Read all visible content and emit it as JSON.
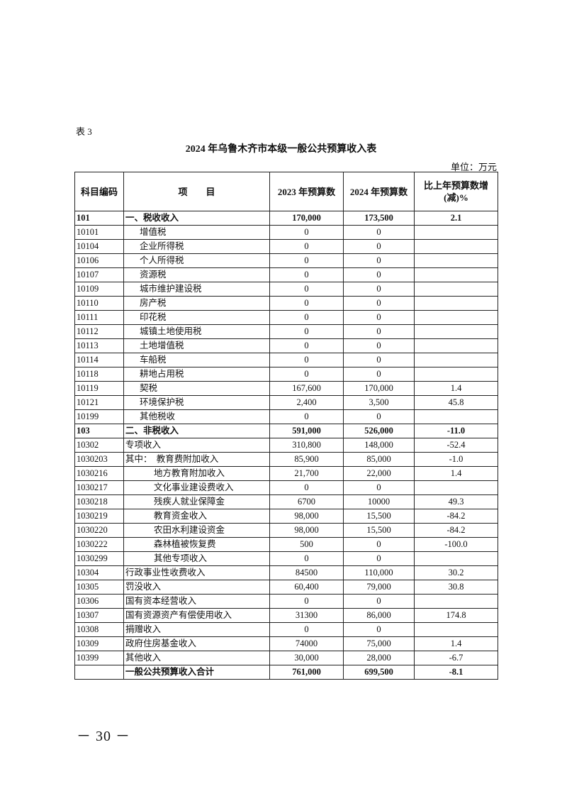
{
  "table_label": "表 3",
  "title": "2024 年乌鲁木齐市本级一般公共预算收入表",
  "unit": "单位：万元",
  "headers": {
    "code": "科目编码",
    "item": "项　　目",
    "y2023": "2023 年预算数",
    "y2024": "2024 年预算数",
    "change": "比上年预算数增(减)%"
  },
  "rows": [
    {
      "code": "101",
      "item": "一、税收收入",
      "y2023": "170,000",
      "y2024": "173,500",
      "change": "2.1",
      "level": "bold"
    },
    {
      "code": "10101",
      "item": "增值税",
      "y2023": "0",
      "y2024": "0",
      "change": "",
      "level": "ind1"
    },
    {
      "code": "10104",
      "item": "企业所得税",
      "y2023": "0",
      "y2024": "0",
      "change": "",
      "level": "ind1"
    },
    {
      "code": "10106",
      "item": "个人所得税",
      "y2023": "0",
      "y2024": "0",
      "change": "",
      "level": "ind1"
    },
    {
      "code": "10107",
      "item": "资源税",
      "y2023": "0",
      "y2024": "0",
      "change": "",
      "level": "ind1"
    },
    {
      "code": "10109",
      "item": "城市维护建设税",
      "y2023": "0",
      "y2024": "0",
      "change": "",
      "level": "ind1"
    },
    {
      "code": "10110",
      "item": "房产税",
      "y2023": "0",
      "y2024": "0",
      "change": "",
      "level": "ind1"
    },
    {
      "code": "10111",
      "item": "印花税",
      "y2023": "0",
      "y2024": "0",
      "change": "",
      "level": "ind1"
    },
    {
      "code": "10112",
      "item": "城镇土地使用税",
      "y2023": "0",
      "y2024": "0",
      "change": "",
      "level": "ind1"
    },
    {
      "code": "10113",
      "item": "土地增值税",
      "y2023": "0",
      "y2024": "0",
      "change": "",
      "level": "ind1"
    },
    {
      "code": "10114",
      "item": "车船税",
      "y2023": "0",
      "y2024": "0",
      "change": "",
      "level": "ind1"
    },
    {
      "code": "10118",
      "item": "耕地占用税",
      "y2023": "0",
      "y2024": "0",
      "change": "",
      "level": "ind1"
    },
    {
      "code": "10119",
      "item": "契税",
      "y2023": "167,600",
      "y2024": "170,000",
      "change": "1.4",
      "level": "ind1"
    },
    {
      "code": "10121",
      "item": "环境保护税",
      "y2023": "2,400",
      "y2024": "3,500",
      "change": "45.8",
      "level": "ind1"
    },
    {
      "code": "10199",
      "item": "其他税收",
      "y2023": "0",
      "y2024": "0",
      "change": "",
      "level": "ind1"
    },
    {
      "code": "103",
      "item": "二、非税收入",
      "y2023": "591,000",
      "y2024": "526,000",
      "change": "-11.0",
      "level": "bold"
    },
    {
      "code": "10302",
      "item": "专项收入",
      "y2023": "310,800",
      "y2024": "148,000",
      "change": "-52.4",
      "level": "ind0"
    },
    {
      "code": "1030203",
      "item": "其中：　教育费附加收入",
      "y2023": "85,900",
      "y2024": "85,000",
      "change": "-1.0",
      "level": "ind0"
    },
    {
      "code": "1030216",
      "item": "地方教育附加收入",
      "y2023": "21,700",
      "y2024": "22,000",
      "change": "1.4",
      "level": "ind2"
    },
    {
      "code": "1030217",
      "item": "文化事业建设费收入",
      "y2023": "0",
      "y2024": "0",
      "change": "",
      "level": "ind2"
    },
    {
      "code": "1030218",
      "item": "残疾人就业保障金",
      "y2023": "6700",
      "y2024": "10000",
      "change": "49.3",
      "level": "ind2"
    },
    {
      "code": "1030219",
      "item": "教育资金收入",
      "y2023": "98,000",
      "y2024": "15,500",
      "change": "-84.2",
      "level": "ind2"
    },
    {
      "code": "1030220",
      "item": "农田水利建设资金",
      "y2023": "98,000",
      "y2024": "15,500",
      "change": "-84.2",
      "level": "ind2"
    },
    {
      "code": "1030222",
      "item": "森林植被恢复费",
      "y2023": "500",
      "y2024": "0",
      "change": "-100.0",
      "level": "ind2"
    },
    {
      "code": "1030299",
      "item": "其他专项收入",
      "y2023": "0",
      "y2024": "0",
      "change": "",
      "level": "ind2"
    },
    {
      "code": "10304",
      "item": "行政事业性收费收入",
      "y2023": "84500",
      "y2024": "110,000",
      "change": "30.2",
      "level": "ind0"
    },
    {
      "code": "10305",
      "item": "罚没收入",
      "y2023": "60,400",
      "y2024": "79,000",
      "change": "30.8",
      "level": "ind0"
    },
    {
      "code": "10306",
      "item": "国有资本经营收入",
      "y2023": "0",
      "y2024": "0",
      "change": "",
      "level": "ind0"
    },
    {
      "code": "10307",
      "item": "国有资源资产有偿使用收入",
      "y2023": "31300",
      "y2024": "86,000",
      "change": "174.8",
      "level": "ind0"
    },
    {
      "code": "10308",
      "item": "捐赠收入",
      "y2023": "0",
      "y2024": "0",
      "change": "",
      "level": "ind0"
    },
    {
      "code": "10309",
      "item": "政府住房基金收入",
      "y2023": "74000",
      "y2024": "75,000",
      "change": "1.4",
      "level": "ind0"
    },
    {
      "code": "10399",
      "item": "其他收入",
      "y2023": "30,000",
      "y2024": "28,000",
      "change": "-6.7",
      "level": "ind0"
    },
    {
      "code": "",
      "item": "一般公共预算收入合计",
      "y2023": "761,000",
      "y2024": "699,500",
      "change": "-8.1",
      "level": "bold"
    }
  ],
  "page_number": "－ 30 －"
}
